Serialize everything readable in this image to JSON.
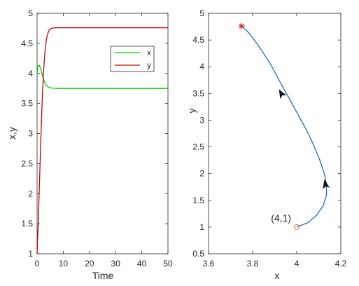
{
  "chart_data": [
    {
      "type": "line",
      "xlabel": "Time",
      "ylabel": "x,y",
      "xlim": [
        0,
        50
      ],
      "ylim": [
        1,
        5
      ],
      "xticks": [
        "0",
        "10",
        "20",
        "30",
        "40",
        "50"
      ],
      "yticks": [
        "1",
        "1.5",
        "2",
        "2.5",
        "3",
        "3.5",
        "4",
        "4.5",
        "5"
      ],
      "grid": false,
      "legend_position": "top-right",
      "series": [
        {
          "name": "x",
          "color": "#00cc00",
          "x": [
            0,
            0.3,
            0.6,
            0.9,
            1.2,
            1.6,
            2.0,
            2.5,
            3.0,
            3.5,
            4.0,
            5.0,
            6.0,
            7.0,
            8.0,
            10,
            15,
            20,
            30,
            40,
            50
          ],
          "y": [
            4.0,
            4.1,
            4.14,
            4.13,
            4.1,
            4.04,
            3.97,
            3.9,
            3.84,
            3.8,
            3.78,
            3.76,
            3.755,
            3.752,
            3.75,
            3.75,
            3.75,
            3.75,
            3.75,
            3.75,
            3.75
          ]
        },
        {
          "name": "y",
          "color": "#cc0000",
          "x": [
            0,
            0.5,
            1.0,
            1.5,
            2.0,
            2.5,
            3.0,
            3.5,
            4.0,
            4.5,
            5.0,
            6.0,
            7.0,
            8.0,
            10,
            15,
            20,
            30,
            40,
            50
          ],
          "y": [
            1.0,
            1.6,
            2.3,
            3.0,
            3.6,
            4.05,
            4.35,
            4.55,
            4.65,
            4.71,
            4.74,
            4.755,
            4.76,
            4.76,
            4.76,
            4.76,
            4.76,
            4.76,
            4.76,
            4.76
          ]
        }
      ]
    },
    {
      "type": "line",
      "xlabel": "x",
      "ylabel": "y",
      "xlim": [
        3.6,
        4.2
      ],
      "ylim": [
        0.5,
        5
      ],
      "xticks": [
        "3.6",
        "3.8",
        "4",
        "4.2"
      ],
      "yticks": [
        "0.5",
        "1",
        "1.5",
        "2",
        "2.5",
        "3",
        "3.5",
        "4",
        "4.5",
        "5"
      ],
      "grid": false,
      "series": [
        {
          "color": "#1f6fb4",
          "x": [
            4.0,
            4.05,
            4.09,
            4.12,
            4.135,
            4.135,
            4.125,
            4.105,
            4.075,
            4.04,
            4.0,
            3.96,
            3.92,
            3.885,
            3.85,
            3.82,
            3.795,
            3.775,
            3.76,
            3.75
          ],
          "y": [
            1.0,
            1.08,
            1.22,
            1.4,
            1.6,
            1.8,
            2.0,
            2.25,
            2.55,
            2.85,
            3.15,
            3.45,
            3.75,
            4.02,
            4.25,
            4.43,
            4.57,
            4.67,
            4.72,
            4.76
          ]
        }
      ],
      "arrows": [
        {
          "x": 4.13,
          "y": 1.8
        },
        {
          "x": 3.93,
          "y": 3.5
        }
      ],
      "start_point": {
        "label": "(4,1)",
        "x": 4.0,
        "y": 1.0,
        "color": "#e07040"
      },
      "equilibrium": {
        "x": 3.75,
        "y": 4.76,
        "color": "#dd2222"
      }
    }
  ]
}
